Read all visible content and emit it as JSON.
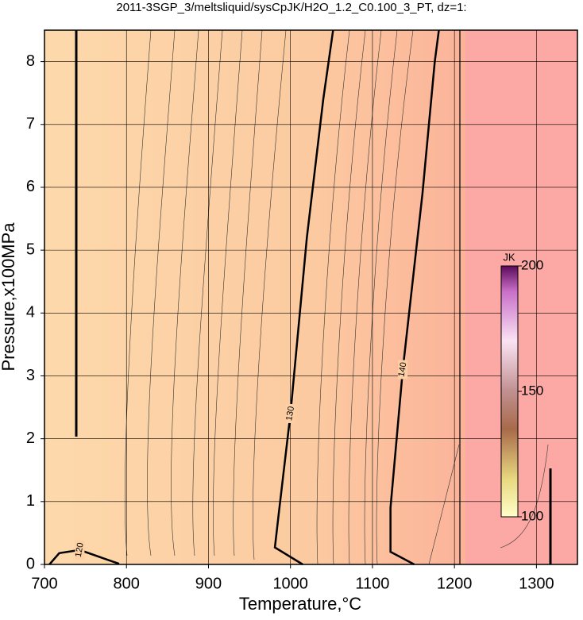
{
  "chart_data": {
    "type": "contour",
    "title": "2011-3SGP_3/meltsliquid/sysCpJK/H2O_1.2_C0.100_3_PT, dz=1:",
    "x_label": "Temperature,°C",
    "y_label": "Pressure,x100MPa",
    "xlim": [
      700,
      1350
    ],
    "ylim": [
      0,
      8.5
    ],
    "xticks": [
      700,
      800,
      900,
      1000,
      1100,
      1200,
      1300
    ],
    "yticks": [
      0,
      1,
      2,
      3,
      4,
      5,
      6,
      7,
      8
    ],
    "grid": true,
    "contours": [
      {
        "level": 120,
        "x": [
          706,
          718,
          743,
          791
        ],
        "y": [
          0,
          0.18,
          0.23,
          0.01
        ]
      },
      {
        "level": 130,
        "x": [
          1015,
          981,
          986,
          1000,
          1020,
          1040,
          1052
        ],
        "y": [
          0,
          0.27,
          0.84,
          2.4,
          5.2,
          7.4,
          8.5
        ]
      },
      {
        "level": 140,
        "x": [
          1151,
          1122,
          1122,
          1137,
          1161,
          1176,
          1181
        ],
        "y": [
          0,
          0.2,
          0.9,
          3.1,
          5.9,
          8.0,
          8.5
        ]
      }
    ],
    "colorbar": {
      "label": "JK",
      "lim": [
        100,
        200
      ],
      "ticks": [
        100,
        150,
        200
      ]
    }
  }
}
